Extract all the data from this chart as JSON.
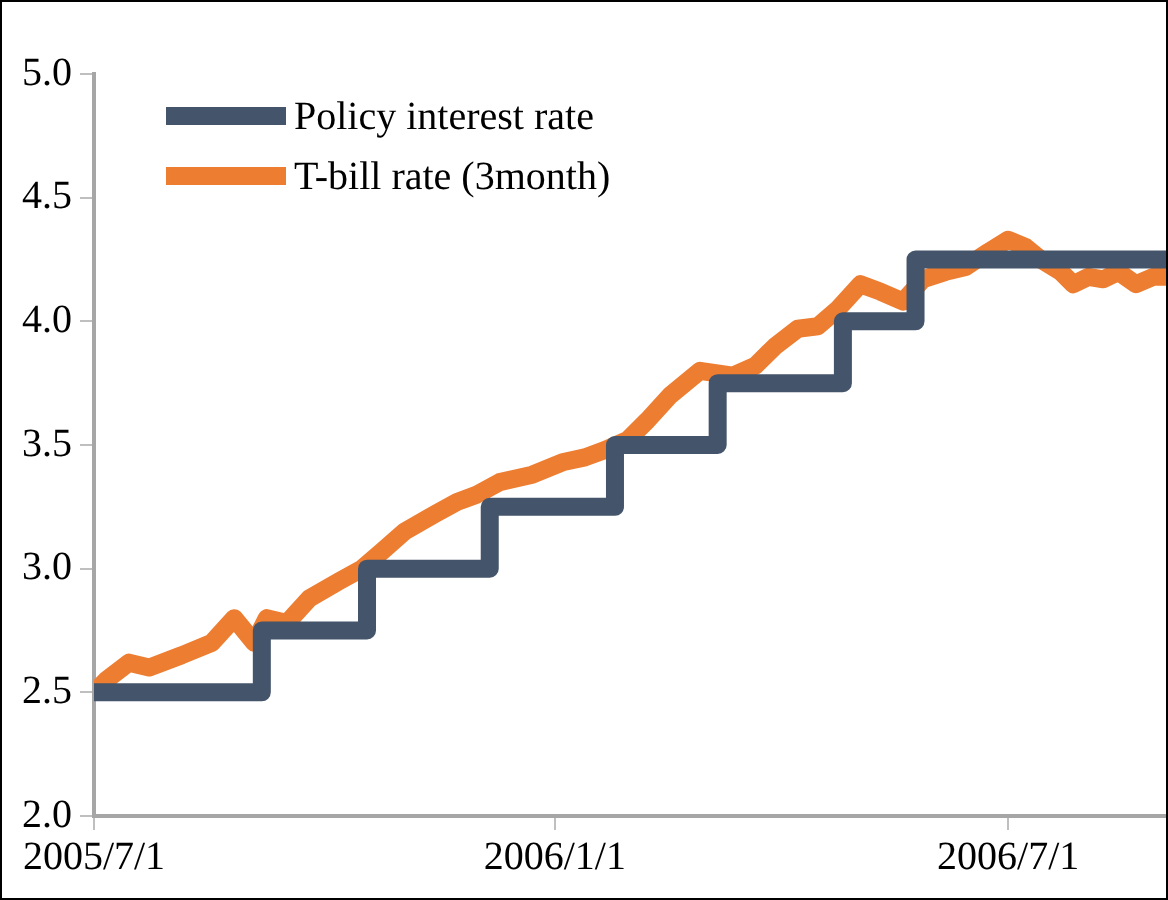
{
  "chart_data": {
    "type": "line",
    "legend": "top left",
    "marker": "none",
    "line_style": "solid",
    "xlim": [
      "2005-07-01",
      "2006-09-02"
    ],
    "xticks": [
      {
        "value": "2005-07-01",
        "label": "2005/7/1"
      },
      {
        "value": "2006-01-01",
        "label": "2006/1/1"
      },
      {
        "value": "2006-07-01",
        "label": "2006/7/1"
      }
    ],
    "ylim": [
      2.0,
      5.0
    ],
    "yticks": [
      {
        "value": 2,
        "label": "2.0"
      },
      {
        "value": 2.5,
        "label": "2.5"
      },
      {
        "value": 3,
        "label": "3.0"
      },
      {
        "value": 3.5,
        "label": "3.5"
      },
      {
        "value": 4,
        "label": "4.0"
      },
      {
        "value": 4.5,
        "label": "4.5"
      },
      {
        "value": 5,
        "label": "5.0"
      }
    ],
    "series": [
      {
        "name": "Policy interest rate",
        "type": "step",
        "color": "#44546a",
        "x": [
          "2005-07-01",
          "2005-09-06",
          "2005-10-18",
          "2005-12-06",
          "2006-01-25",
          "2006-03-07",
          "2006-04-26",
          "2006-05-25",
          "2006-09-02"
        ],
        "values": [
          2.5,
          2.75,
          3.0,
          3.25,
          3.5,
          3.75,
          4.0,
          4.25,
          4.25
        ]
      },
      {
        "name": "T-bill rate (3month)",
        "type": "line",
        "color": "#ed7d31",
        "x": [
          "2005-07-01",
          "2005-07-06",
          "2005-07-15",
          "2005-07-23",
          "2005-08-05",
          "2005-08-17",
          "2005-08-26",
          "2005-08-30",
          "2005-09-03",
          "2005-09-08",
          "2005-09-16",
          "2005-09-25",
          "2005-10-07",
          "2005-10-16",
          "2005-10-24",
          "2005-11-02",
          "2005-11-14",
          "2005-11-23",
          "2005-12-01",
          "2005-12-10",
          "2005-12-23",
          "2006-01-04",
          "2006-01-13",
          "2006-01-21",
          "2006-01-30",
          "2006-02-07",
          "2006-02-16",
          "2006-02-28",
          "2006-03-13",
          "2006-03-22",
          "2006-03-30",
          "2006-04-08",
          "2006-04-16",
          "2006-04-24",
          "2006-05-03",
          "2006-05-11",
          "2006-05-20",
          "2006-05-28",
          "2006-06-06",
          "2006-06-14",
          "2006-06-23",
          "2006-07-01",
          "2006-07-08",
          "2006-07-14",
          "2006-07-22",
          "2006-07-27",
          "2006-08-02",
          "2006-08-08",
          "2006-08-14",
          "2006-08-21",
          "2006-08-28",
          "2006-09-02"
        ],
        "values": [
          2.5,
          2.55,
          2.62,
          2.6,
          2.65,
          2.7,
          2.8,
          2.75,
          2.7,
          2.8,
          2.78,
          2.88,
          2.95,
          3.0,
          3.07,
          3.15,
          3.22,
          3.27,
          3.3,
          3.35,
          3.38,
          3.43,
          3.45,
          3.48,
          3.52,
          3.6,
          3.7,
          3.8,
          3.78,
          3.82,
          3.9,
          3.97,
          3.98,
          4.05,
          4.15,
          4.12,
          4.08,
          4.17,
          4.2,
          4.22,
          4.28,
          4.33,
          4.3,
          4.25,
          4.2,
          4.15,
          4.18,
          4.17,
          4.2,
          4.15,
          4.18,
          4.18
        ]
      }
    ]
  }
}
